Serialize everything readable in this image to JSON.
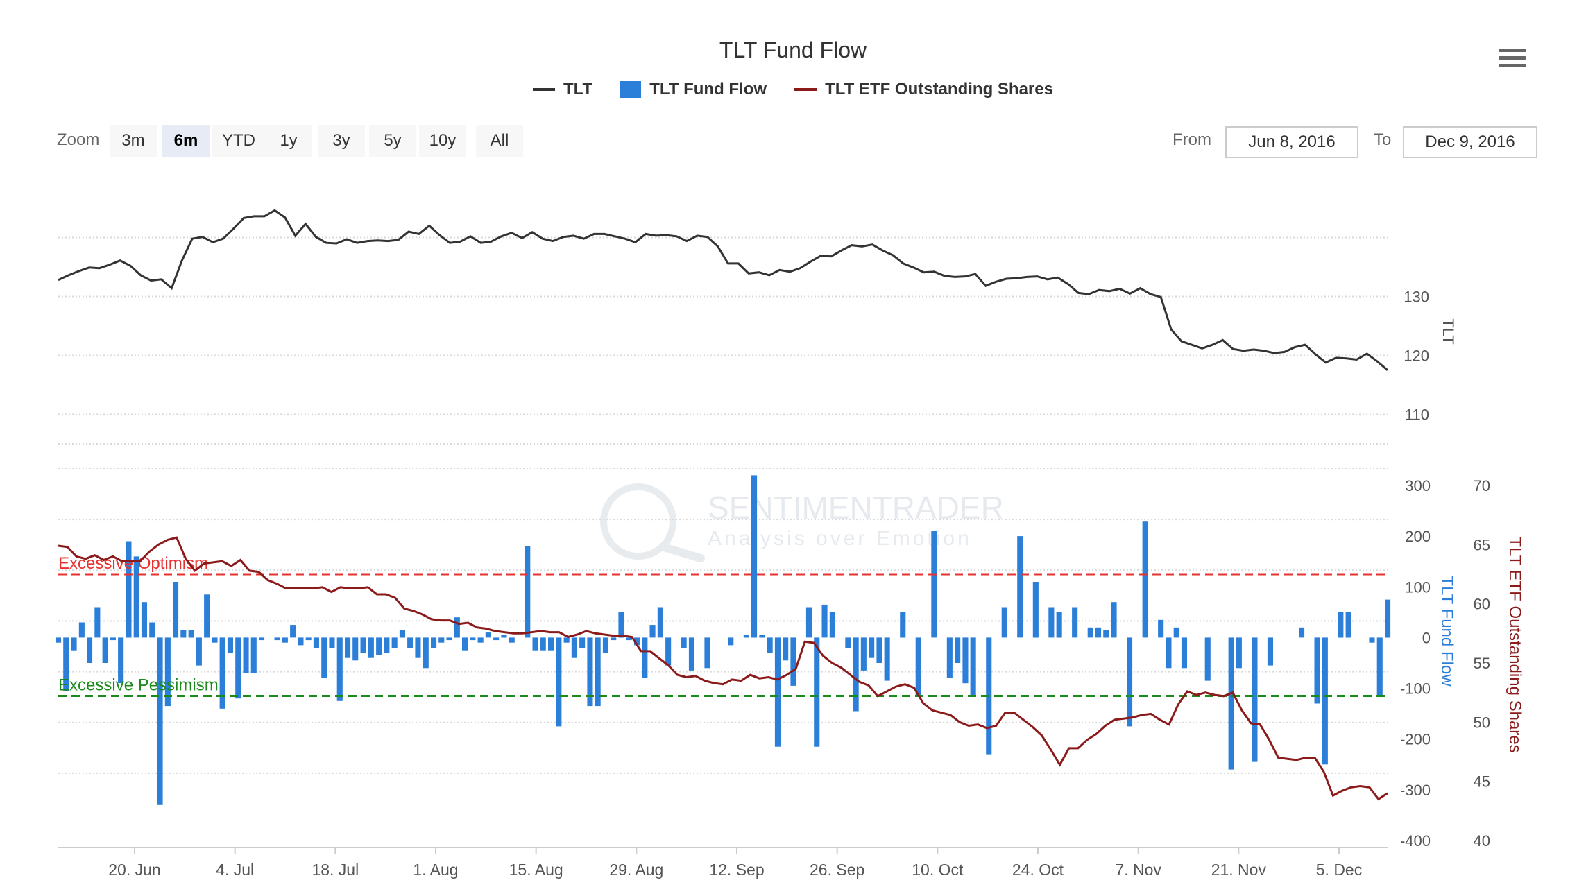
{
  "title": "TLT Fund Flow",
  "legend": [
    {
      "name": "TLT",
      "color": "#333333",
      "kind": "line"
    },
    {
      "name": "TLT Fund Flow",
      "color": "#2b7fd8",
      "kind": "box"
    },
    {
      "name": "TLT ETF Outstanding Shares",
      "color": "#8b1a1a",
      "kind": "line"
    }
  ],
  "zoom": {
    "label": "Zoom",
    "buttons": [
      "3m",
      "6m",
      "YTD",
      "1y",
      "3y",
      "5y",
      "10y",
      "All"
    ],
    "active": "6m"
  },
  "range": {
    "from_label": "From",
    "from_value": "Jun 8, 2016",
    "to_label": "To",
    "to_value": "Dec 9, 2016"
  },
  "menu_icon": "hamburger-icon",
  "watermark": {
    "line1": "SENTIMENTRADER",
    "line2": "Analysis over Emotion"
  },
  "chart_data": [
    {
      "type": "line",
      "series": [
        {
          "name": "TLT",
          "color": "#333333",
          "values": [
            132.8,
            133.6,
            134.3,
            134.9,
            134.8,
            135.4,
            136.1,
            135.2,
            133.6,
            132.7,
            132.9,
            131.4,
            136.1,
            139.8,
            140.1,
            139.2,
            139.8,
            141.5,
            143.3,
            143.6,
            143.6,
            144.6,
            143.4,
            140.3,
            142.3,
            140.1,
            139.1,
            139.0,
            139.7,
            139.1,
            139.4,
            139.5,
            139.4,
            139.6,
            141.0,
            140.6,
            142.0,
            140.4,
            139.1,
            139.3,
            140.2,
            139.1,
            139.3,
            140.2,
            140.8,
            139.9,
            140.9,
            139.8,
            139.4,
            140.1,
            140.3,
            139.8,
            140.6,
            140.6,
            140.2,
            139.8,
            139.2,
            140.6,
            140.3,
            140.4,
            140.2,
            139.4,
            140.3,
            140.1,
            138.5,
            135.6,
            135.6,
            133.9,
            134.1,
            133.6,
            134.5,
            134.2,
            134.8,
            135.9,
            136.9,
            136.8,
            137.8,
            138.7,
            138.5,
            138.8,
            137.8,
            137.0,
            135.6,
            134.9,
            134.1,
            134.2,
            133.5,
            133.3,
            133.4,
            133.8,
            131.8,
            132.5,
            133.0,
            133.1,
            133.3,
            133.4,
            132.9,
            133.2,
            132.1,
            130.6,
            130.4,
            131.1,
            130.9,
            131.3,
            130.5,
            131.4,
            130.4,
            129.9,
            124.4,
            122.4,
            121.8,
            121.2,
            121.8,
            122.6,
            121.1,
            120.8,
            121.0,
            120.8,
            120.4,
            120.6,
            121.4,
            121.8,
            120.2,
            118.8,
            119.6,
            119.5,
            119.3,
            120.3,
            119.0,
            117.5
          ]
        }
      ],
      "x_ticks": [
        "20. Jun",
        "4. Jul",
        "18. Jul",
        "1. Aug",
        "15. Aug",
        "29. Aug",
        "12. Sep",
        "26. Sep",
        "10. Oct",
        "24. Oct",
        "7. Nov",
        "21. Nov",
        "5. Dec"
      ],
      "y_ticks": [
        110,
        120,
        130
      ],
      "ylabel": "TLT",
      "ylim": [
        105,
        145
      ]
    },
    {
      "type": "bar",
      "series": [
        {
          "name": "TLT Fund Flow",
          "color": "#2b7fd8",
          "values": [
            -10,
            -105,
            -25,
            30,
            -50,
            60,
            -50,
            -5,
            -90,
            190,
            160,
            70,
            30,
            -330,
            -135,
            110,
            15,
            15,
            -55,
            85,
            -10,
            -140,
            -30,
            -120,
            -70,
            -70,
            -5,
            0,
            -5,
            -10,
            25,
            -15,
            -5,
            -20,
            -80,
            -20,
            -125,
            -40,
            -45,
            -30,
            -40,
            -35,
            -30,
            -20,
            15,
            -20,
            -40,
            -60,
            -20,
            -10,
            -5,
            40,
            -25,
            -5,
            -10,
            10,
            -5,
            5,
            -10,
            0,
            180,
            -25,
            -25,
            -25,
            -175,
            -10,
            -40,
            -20,
            -135,
            -135,
            -30,
            -5,
            50,
            -5,
            -15,
            -80,
            25,
            60,
            -55,
            0,
            -20,
            -65,
            0,
            -60,
            0,
            0,
            -15,
            0,
            5,
            320,
            5,
            -30,
            -215,
            -45,
            -95,
            0,
            60,
            -215,
            65,
            50,
            0,
            -20,
            -145,
            -65,
            -40,
            -50,
            -85,
            0,
            50,
            0,
            -115,
            0,
            210,
            0,
            -80,
            -50,
            -90,
            -115,
            0,
            -230,
            0,
            60,
            0,
            200,
            0,
            110,
            0,
            60,
            50,
            0,
            60,
            0,
            20,
            20,
            15,
            70,
            0,
            -175,
            0,
            230,
            0,
            35,
            -60,
            20,
            -60,
            0,
            0,
            -85,
            0,
            0,
            -260,
            -60,
            0,
            -245,
            0,
            -55,
            0,
            0,
            0,
            20,
            0,
            -130,
            -250,
            0,
            50,
            50,
            0,
            0,
            -10,
            -115,
            75
          ]
        },
        {
          "name": "TLT ETF Outstanding Shares",
          "color": "#8b1a1a",
          "values": [
            64.9,
            64.8,
            64.0,
            63.8,
            64.1,
            63.7,
            64.0,
            63.6,
            63.6,
            63.6,
            64.4,
            65.0,
            65.4,
            65.6,
            63.8,
            62.8,
            63.4,
            63.5,
            63.6,
            63.2,
            63.7,
            62.8,
            62.7,
            62.0,
            61.7,
            61.3,
            61.3,
            61.3,
            61.3,
            61.4,
            61.0,
            61.4,
            61.3,
            61.3,
            61.4,
            60.8,
            60.8,
            60.5,
            59.6,
            59.4,
            59.1,
            58.7,
            58.6,
            58.6,
            58.3,
            58.4,
            58.0,
            57.9,
            57.7,
            57.6,
            57.5,
            57.5,
            57.6,
            57.7,
            57.6,
            57.6,
            57.2,
            57.4,
            57.7,
            57.5,
            57.4,
            57.3,
            57.3,
            57.2,
            56.0,
            56.0,
            55.4,
            54.8,
            54.0,
            53.8,
            53.9,
            53.5,
            53.3,
            53.2,
            53.6,
            53.5,
            54.0,
            53.7,
            53.8,
            53.6,
            54.0,
            54.5,
            56.8,
            56.7,
            55.6,
            55.0,
            54.6,
            54.0,
            53.4,
            53.1,
            52.2,
            52.6,
            53.0,
            53.2,
            52.9,
            51.6,
            51.0,
            50.8,
            50.6,
            50.0,
            49.7,
            49.8,
            49.5,
            49.7,
            50.8,
            50.8,
            50.2,
            49.6,
            48.9,
            47.7,
            46.4,
            47.8,
            47.8,
            48.5,
            49.0,
            49.7,
            50.2,
            50.3,
            50.4,
            50.6,
            50.7,
            50.2,
            49.8,
            51.5,
            52.6,
            52.3,
            52.5,
            52.3,
            52.2,
            52.5,
            51.0,
            49.9,
            49.8,
            48.5,
            47.0,
            46.9,
            46.8,
            47.0,
            47.0,
            45.8,
            43.8,
            44.2,
            44.5,
            44.6,
            44.5,
            43.5,
            44.0
          ]
        }
      ],
      "y_ticks_left": [
        -400,
        -300,
        -200,
        -100,
        0,
        100,
        200,
        300
      ],
      "y_ticks_right": [
        40,
        45,
        50,
        55,
        60,
        65,
        70
      ],
      "ylabel_left": "TLT Fund Flow",
      "ylabel_right": "TLT ETF Outstanding Shares",
      "ylim_left": [
        -400,
        300
      ],
      "ylim_right": [
        40,
        70
      ],
      "bands": [
        {
          "label": "Excessive Optimism",
          "value": 125,
          "color": "#e8312f"
        },
        {
          "label": "Excessive Pessimism",
          "value": -115,
          "color": "#1a8a1a"
        }
      ]
    }
  ]
}
